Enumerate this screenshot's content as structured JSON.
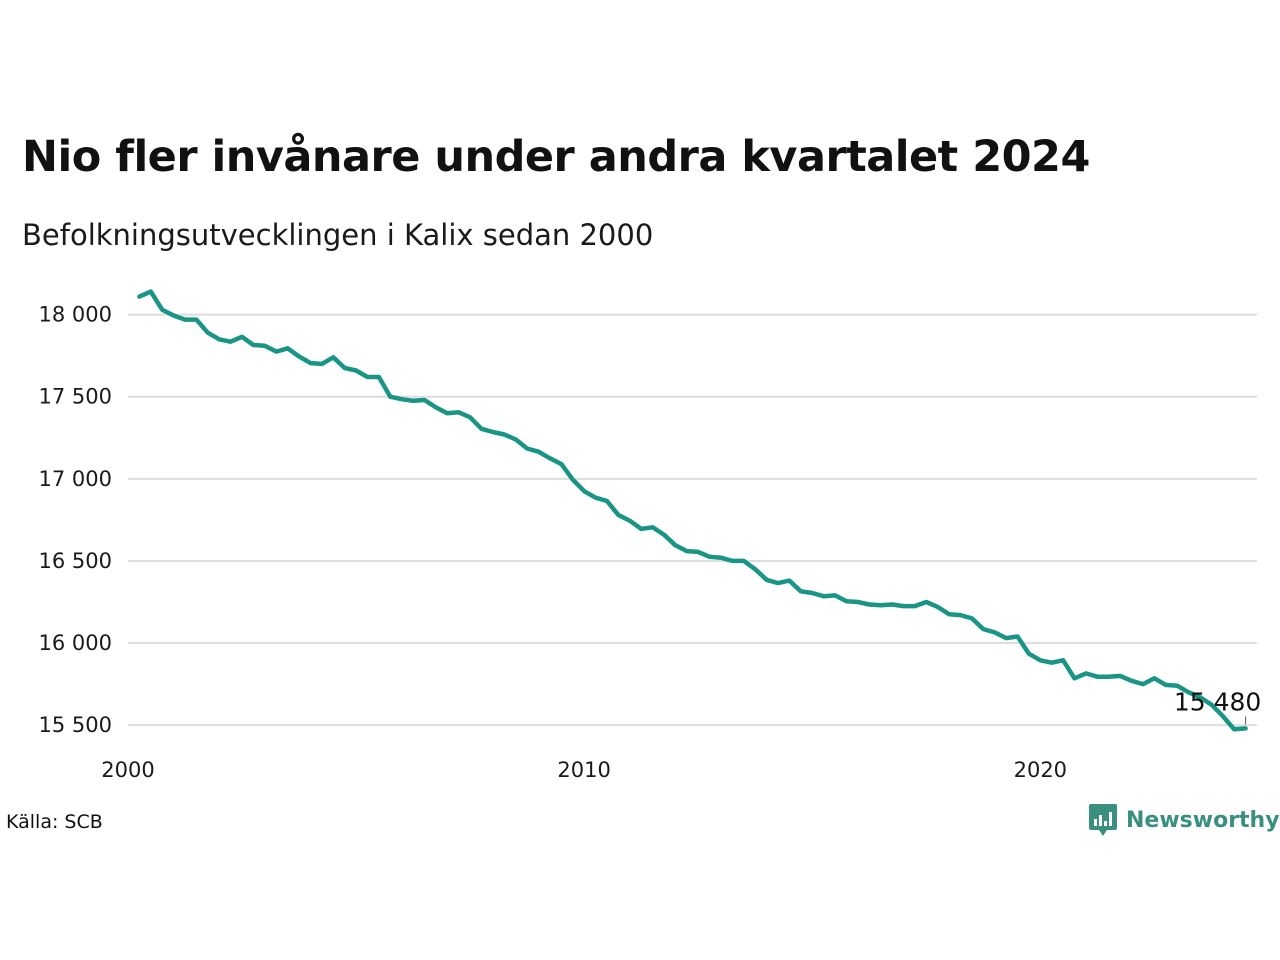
{
  "header": {
    "title": "Nio fler invånare under andra kvartalet 2024",
    "subtitle": "Befolkningsutvecklingen i Kalix sedan 2000"
  },
  "footer": {
    "source": "Källa: SCB",
    "brand": "Newsworthy",
    "brand_icon": "newsworthy-logo-icon"
  },
  "colors": {
    "line": "#1a9585",
    "grid": "#dddddd",
    "brand": "#3a9080"
  },
  "chart_data": {
    "type": "line",
    "title": "Nio fler invånare under andra kvartalet 2024",
    "subtitle": "Befolkningsutvecklingen i Kalix sedan 2000",
    "xlabel": "",
    "ylabel": "",
    "xlim": [
      2000,
      2024.75
    ],
    "ylim": [
      15440,
      18150
    ],
    "grid": true,
    "yticks": [
      15500,
      16000,
      16500,
      17000,
      17500,
      18000
    ],
    "ytick_labels": [
      "15 500",
      "16 000",
      "16 500",
      "17 000",
      "17 500",
      "18 000"
    ],
    "xticks": [
      2000,
      2010,
      2020
    ],
    "xtick_labels": [
      "2000",
      "2010",
      "2020"
    ],
    "end_label": "15 480",
    "series": [
      {
        "x": [
          2000.25,
          2000.5,
          2000.75,
          2001.0,
          2001.25,
          2001.5,
          2001.75,
          2002.0,
          2002.25,
          2002.5,
          2002.75,
          2003.0,
          2003.25,
          2003.5,
          2003.75,
          2004.0,
          2004.25,
          2004.5,
          2004.75,
          2005.0,
          2005.25,
          2005.5,
          2005.75,
          2006.0,
          2006.25,
          2006.5,
          2006.75,
          2007.0,
          2007.25,
          2007.5,
          2007.75,
          2008.0,
          2008.25,
          2008.5,
          2008.75,
          2009.0,
          2009.25,
          2009.5,
          2009.75,
          2010.0,
          2010.25,
          2010.5,
          2010.75,
          2011.0,
          2011.25,
          2011.5,
          2011.75,
          2012.0,
          2012.25,
          2012.5,
          2012.75,
          2013.0,
          2013.25,
          2013.5,
          2013.75,
          2014.0,
          2014.25,
          2014.5,
          2014.75,
          2015.0,
          2015.25,
          2015.5,
          2015.75,
          2016.0,
          2016.25,
          2016.5,
          2016.75,
          2017.0,
          2017.25,
          2017.5,
          2017.75,
          2018.0,
          2018.25,
          2018.5,
          2018.75,
          2019.0,
          2019.25,
          2019.5,
          2019.75,
          2020.0,
          2020.25,
          2020.5,
          2020.75,
          2021.0,
          2021.25,
          2021.5,
          2021.75,
          2022.0,
          2022.25,
          2022.5,
          2022.75,
          2023.0,
          2023.25,
          2023.5,
          2023.75,
          2024.0,
          2024.25,
          2024.5
        ],
        "values": [
          18110,
          18140,
          18030,
          17995,
          17970,
          17970,
          17890,
          17850,
          17835,
          17865,
          17815,
          17810,
          17775,
          17795,
          17745,
          17705,
          17700,
          17740,
          17675,
          17660,
          17620,
          17620,
          17500,
          17485,
          17475,
          17480,
          17435,
          17400,
          17405,
          17375,
          17305,
          17285,
          17270,
          17240,
          17185,
          17165,
          17125,
          17090,
          16995,
          16925,
          16885,
          16865,
          16780,
          16745,
          16695,
          16705,
          16660,
          16595,
          16560,
          16555,
          16525,
          16520,
          16500,
          16500,
          16450,
          16385,
          16365,
          16380,
          16315,
          16305,
          16285,
          16290,
          16255,
          16250,
          16235,
          16230,
          16235,
          16225,
          16225,
          16250,
          16220,
          16175,
          16170,
          16150,
          16085,
          16065,
          16030,
          16040,
          15935,
          15895,
          15880,
          15895,
          15785,
          15815,
          15795,
          15795,
          15800,
          15770,
          15750,
          15785,
          15745,
          15740,
          15700,
          15670,
          15625,
          15555,
          15475,
          15480
        ]
      }
    ]
  }
}
